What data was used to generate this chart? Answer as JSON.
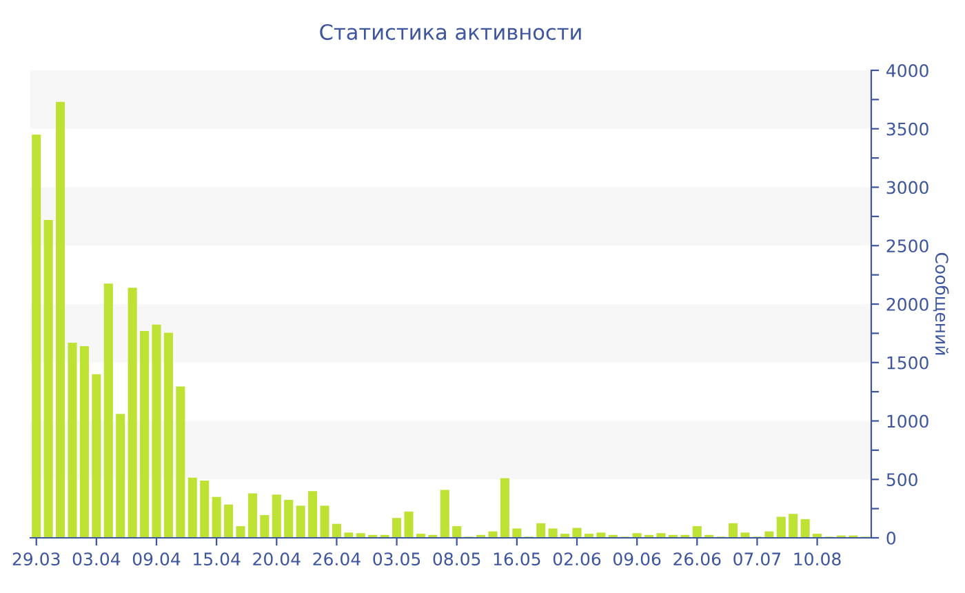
{
  "chart_data": {
    "type": "bar",
    "title": "Статистика активности",
    "ylabel": "Сообщений",
    "categories": [
      "29.03",
      null,
      null,
      null,
      null,
      "03.04",
      null,
      null,
      null,
      null,
      "09.04",
      null,
      null,
      null,
      null,
      "15.04",
      null,
      null,
      null,
      null,
      "20.04",
      null,
      null,
      null,
      null,
      "26.04",
      null,
      null,
      null,
      null,
      "03.05",
      null,
      null,
      null,
      null,
      "08.05",
      null,
      null,
      null,
      null,
      "16.05",
      null,
      null,
      null,
      null,
      "02.06",
      null,
      null,
      null,
      null,
      "09.06",
      null,
      null,
      null,
      null,
      "26.06",
      null,
      null,
      null,
      null,
      "07.07",
      null,
      null,
      null,
      null,
      "10.08",
      null,
      null,
      null,
      null
    ],
    "series": [
      {
        "color": "#bde234",
        "values": [
          3450,
          2720,
          3730,
          1670,
          1640,
          1400,
          2175,
          1060,
          2140,
          1770,
          1825,
          1755,
          1295,
          515,
          490,
          350,
          285,
          100,
          380,
          195,
          370,
          325,
          275,
          400,
          275,
          120,
          45,
          40,
          25,
          25,
          170,
          225,
          35,
          25,
          410,
          100,
          10,
          25,
          55,
          510,
          80,
          10,
          125,
          80,
          35,
          85,
          35,
          45,
          25,
          10,
          40,
          25,
          40,
          25,
          25,
          100,
          25,
          10,
          125,
          45,
          10,
          55,
          180,
          205,
          160,
          35,
          10,
          20,
          20,
          10
        ]
      }
    ],
    "ylim": [
      0,
      4000
    ],
    "yticks": [
      0,
      {
        "value": 250,
        "label": null
      },
      500,
      {
        "value": 750,
        "label": null
      },
      1000,
      {
        "value": 1250,
        "label": null
      },
      1500,
      {
        "value": 1750,
        "label": null
      },
      2000,
      {
        "value": 2250,
        "label": null
      },
      2500,
      {
        "value": 2750,
        "label": null
      },
      3000,
      {
        "value": 3250,
        "label": null
      },
      3500,
      {
        "value": 3750,
        "label": null
      },
      4000
    ],
    "bands": [
      {
        "axis": "y",
        "from": 500,
        "to": 1000,
        "color": "#f7f7f7"
      },
      {
        "axis": "y",
        "from": 1500,
        "to": 2000,
        "color": "#f7f7f7"
      },
      {
        "axis": "y",
        "from": 2500,
        "to": 3000,
        "color": "#f7f7f7"
      },
      {
        "axis": "y",
        "from": 3500,
        "to": 4000,
        "color": "#f7f7f7"
      }
    ],
    "grid": false,
    "legend": false
  }
}
